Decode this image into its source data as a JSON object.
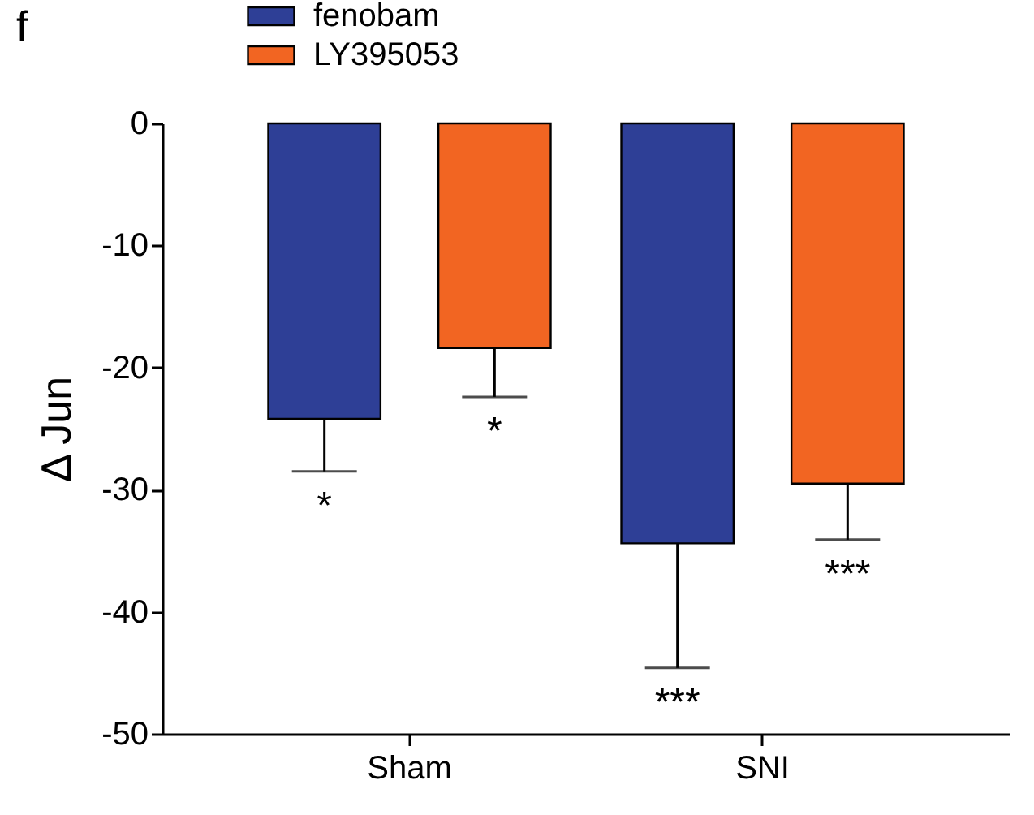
{
  "chart_data": {
    "type": "bar",
    "title": "f",
    "ylabel": "Δ Jun",
    "categories": [
      "Sham",
      "SNI"
    ],
    "series": [
      {
        "name": "fenobam",
        "color": "#2e3f96",
        "values": [
          -24.2,
          -34.4
        ],
        "errors": [
          [
            -28.5,
            -24.2
          ],
          [
            -44.6,
            -34.4
          ]
        ]
      },
      {
        "name": "LY395053",
        "color": "#f26522",
        "values": [
          -18.4,
          -29.5
        ],
        "errors": [
          [
            -22.4,
            -18.4
          ],
          [
            -34.1,
            -29.5
          ]
        ]
      }
    ],
    "ylim": [
      -50,
      0
    ],
    "yticks": [
      -50,
      -40,
      -30,
      -20,
      -10,
      0
    ],
    "grid": false,
    "legend": "top left",
    "annotations": [
      "*",
      "*",
      "***",
      "***"
    ]
  }
}
